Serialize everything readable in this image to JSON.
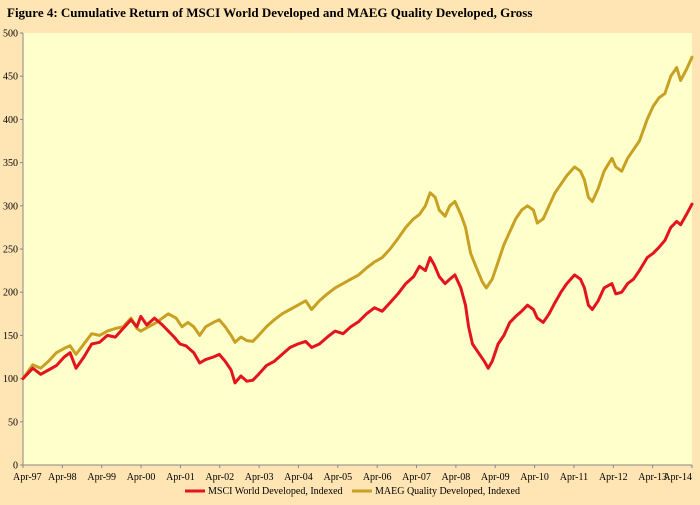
{
  "chart_data": {
    "type": "line",
    "title": "Figure 4: Cumulative  Return  of MSCI World  Developed and  MAEG Quality Developed, Gross",
    "xlabel": "",
    "ylabel": "",
    "ylim": [
      0,
      500
    ],
    "yticks": [
      0,
      50,
      100,
      150,
      200,
      250,
      300,
      350,
      400,
      450,
      500
    ],
    "xlim": [
      1997.25,
      2014.29
    ],
    "xtick_labels": [
      "Apr-97",
      "Apr-98",
      "Apr-99",
      "Apr-00",
      "Apr-01",
      "Apr-02",
      "Apr-03",
      "Apr-04",
      "Apr-05",
      "Apr-06",
      "Apr-07",
      "Apr-08",
      "Apr-09",
      "Apr-10",
      "Apr-11",
      "Apr-12",
      "Apr-13",
      "Apr-14"
    ],
    "grid": false,
    "legend_position": "bottom",
    "plot_background": "#FFFFCC",
    "page_background": "#FFE5B4",
    "series": [
      {
        "name": "MSCI World Developed, Indexed",
        "color": "#E4141E",
        "points": [
          [
            1997.25,
            100
          ],
          [
            1997.5,
            112
          ],
          [
            1997.7,
            105
          ],
          [
            1997.9,
            110
          ],
          [
            1998.1,
            115
          ],
          [
            1998.3,
            125
          ],
          [
            1998.45,
            130
          ],
          [
            1998.6,
            112
          ],
          [
            1998.8,
            125
          ],
          [
            1999.0,
            140
          ],
          [
            1999.2,
            142
          ],
          [
            1999.4,
            150
          ],
          [
            1999.6,
            148
          ],
          [
            1999.8,
            158
          ],
          [
            2000.0,
            168
          ],
          [
            2000.15,
            160
          ],
          [
            2000.25,
            172
          ],
          [
            2000.4,
            162
          ],
          [
            2000.6,
            170
          ],
          [
            2000.8,
            162
          ],
          [
            2000.95,
            155
          ],
          [
            2001.1,
            148
          ],
          [
            2001.25,
            140
          ],
          [
            2001.4,
            138
          ],
          [
            2001.6,
            130
          ],
          [
            2001.75,
            118
          ],
          [
            2001.9,
            122
          ],
          [
            2002.1,
            125
          ],
          [
            2002.25,
            128
          ],
          [
            2002.4,
            120
          ],
          [
            2002.55,
            110
          ],
          [
            2002.65,
            95
          ],
          [
            2002.8,
            103
          ],
          [
            2002.95,
            97
          ],
          [
            2003.1,
            98
          ],
          [
            2003.25,
            105
          ],
          [
            2003.45,
            115
          ],
          [
            2003.65,
            120
          ],
          [
            2003.85,
            128
          ],
          [
            2004.05,
            136
          ],
          [
            2004.25,
            140
          ],
          [
            2004.45,
            143
          ],
          [
            2004.6,
            136
          ],
          [
            2004.8,
            140
          ],
          [
            2005.0,
            148
          ],
          [
            2005.2,
            155
          ],
          [
            2005.4,
            152
          ],
          [
            2005.6,
            160
          ],
          [
            2005.8,
            166
          ],
          [
            2006.0,
            175
          ],
          [
            2006.2,
            182
          ],
          [
            2006.4,
            178
          ],
          [
            2006.6,
            188
          ],
          [
            2006.8,
            198
          ],
          [
            2007.0,
            210
          ],
          [
            2007.2,
            218
          ],
          [
            2007.35,
            230
          ],
          [
            2007.5,
            225
          ],
          [
            2007.62,
            240
          ],
          [
            2007.72,
            232
          ],
          [
            2007.85,
            218
          ],
          [
            2008.0,
            210
          ],
          [
            2008.12,
            215
          ],
          [
            2008.25,
            220
          ],
          [
            2008.4,
            205
          ],
          [
            2008.52,
            185
          ],
          [
            2008.6,
            160
          ],
          [
            2008.7,
            140
          ],
          [
            2008.85,
            130
          ],
          [
            2009.0,
            120
          ],
          [
            2009.1,
            112
          ],
          [
            2009.2,
            120
          ],
          [
            2009.35,
            140
          ],
          [
            2009.5,
            150
          ],
          [
            2009.65,
            165
          ],
          [
            2009.8,
            172
          ],
          [
            2009.95,
            178
          ],
          [
            2010.1,
            185
          ],
          [
            2010.25,
            180
          ],
          [
            2010.35,
            170
          ],
          [
            2010.5,
            165
          ],
          [
            2010.65,
            175
          ],
          [
            2010.8,
            188
          ],
          [
            2010.95,
            200
          ],
          [
            2011.1,
            210
          ],
          [
            2011.3,
            220
          ],
          [
            2011.45,
            215
          ],
          [
            2011.55,
            205
          ],
          [
            2011.65,
            185
          ],
          [
            2011.75,
            180
          ],
          [
            2011.9,
            190
          ],
          [
            2012.05,
            205
          ],
          [
            2012.25,
            210
          ],
          [
            2012.35,
            198
          ],
          [
            2012.5,
            200
          ],
          [
            2012.65,
            210
          ],
          [
            2012.8,
            215
          ],
          [
            2012.95,
            225
          ],
          [
            2013.15,
            240
          ],
          [
            2013.3,
            245
          ],
          [
            2013.45,
            252
          ],
          [
            2013.6,
            260
          ],
          [
            2013.75,
            275
          ],
          [
            2013.9,
            282
          ],
          [
            2014.0,
            278
          ],
          [
            2014.15,
            290
          ],
          [
            2014.29,
            302
          ]
        ]
      },
      {
        "name": "MAEG Quality Developed, Indexed",
        "color": "#C8A024",
        "points": [
          [
            1997.25,
            100
          ],
          [
            1997.5,
            116
          ],
          [
            1997.7,
            112
          ],
          [
            1997.9,
            120
          ],
          [
            1998.1,
            130
          ],
          [
            1998.3,
            135
          ],
          [
            1998.45,
            138
          ],
          [
            1998.6,
            128
          ],
          [
            1998.8,
            140
          ],
          [
            1999.0,
            152
          ],
          [
            1999.2,
            150
          ],
          [
            1999.4,
            155
          ],
          [
            1999.6,
            158
          ],
          [
            1999.8,
            160
          ],
          [
            2000.0,
            170
          ],
          [
            2000.15,
            158
          ],
          [
            2000.25,
            155
          ],
          [
            2000.45,
            160
          ],
          [
            2000.65,
            165
          ],
          [
            2000.8,
            170
          ],
          [
            2000.95,
            175
          ],
          [
            2001.15,
            170
          ],
          [
            2001.3,
            160
          ],
          [
            2001.45,
            165
          ],
          [
            2001.6,
            160
          ],
          [
            2001.75,
            150
          ],
          [
            2001.9,
            160
          ],
          [
            2002.1,
            165
          ],
          [
            2002.25,
            168
          ],
          [
            2002.4,
            160
          ],
          [
            2002.55,
            150
          ],
          [
            2002.65,
            142
          ],
          [
            2002.8,
            148
          ],
          [
            2002.95,
            144
          ],
          [
            2003.1,
            143
          ],
          [
            2003.25,
            150
          ],
          [
            2003.45,
            160
          ],
          [
            2003.65,
            168
          ],
          [
            2003.85,
            175
          ],
          [
            2004.05,
            180
          ],
          [
            2004.25,
            185
          ],
          [
            2004.45,
            190
          ],
          [
            2004.6,
            180
          ],
          [
            2004.8,
            190
          ],
          [
            2005.0,
            198
          ],
          [
            2005.2,
            205
          ],
          [
            2005.4,
            210
          ],
          [
            2005.6,
            215
          ],
          [
            2005.8,
            220
          ],
          [
            2006.0,
            228
          ],
          [
            2006.2,
            235
          ],
          [
            2006.4,
            240
          ],
          [
            2006.6,
            250
          ],
          [
            2006.8,
            262
          ],
          [
            2007.0,
            275
          ],
          [
            2007.2,
            285
          ],
          [
            2007.35,
            290
          ],
          [
            2007.5,
            300
          ],
          [
            2007.62,
            315
          ],
          [
            2007.75,
            310
          ],
          [
            2007.85,
            295
          ],
          [
            2008.0,
            288
          ],
          [
            2008.12,
            300
          ],
          [
            2008.25,
            305
          ],
          [
            2008.4,
            290
          ],
          [
            2008.52,
            275
          ],
          [
            2008.65,
            245
          ],
          [
            2008.8,
            228
          ],
          [
            2008.95,
            212
          ],
          [
            2009.05,
            205
          ],
          [
            2009.2,
            215
          ],
          [
            2009.35,
            235
          ],
          [
            2009.5,
            255
          ],
          [
            2009.65,
            270
          ],
          [
            2009.8,
            285
          ],
          [
            2009.95,
            295
          ],
          [
            2010.1,
            300
          ],
          [
            2010.25,
            295
          ],
          [
            2010.35,
            280
          ],
          [
            2010.5,
            285
          ],
          [
            2010.65,
            300
          ],
          [
            2010.8,
            315
          ],
          [
            2010.95,
            325
          ],
          [
            2011.1,
            335
          ],
          [
            2011.3,
            345
          ],
          [
            2011.45,
            340
          ],
          [
            2011.55,
            330
          ],
          [
            2011.65,
            310
          ],
          [
            2011.75,
            305
          ],
          [
            2011.9,
            320
          ],
          [
            2012.05,
            340
          ],
          [
            2012.25,
            355
          ],
          [
            2012.35,
            345
          ],
          [
            2012.5,
            340
          ],
          [
            2012.65,
            355
          ],
          [
            2012.8,
            365
          ],
          [
            2012.95,
            375
          ],
          [
            2013.15,
            400
          ],
          [
            2013.3,
            415
          ],
          [
            2013.45,
            425
          ],
          [
            2013.6,
            430
          ],
          [
            2013.75,
            450
          ],
          [
            2013.9,
            460
          ],
          [
            2014.0,
            445
          ],
          [
            2014.15,
            458
          ],
          [
            2014.29,
            472
          ]
        ]
      }
    ]
  }
}
